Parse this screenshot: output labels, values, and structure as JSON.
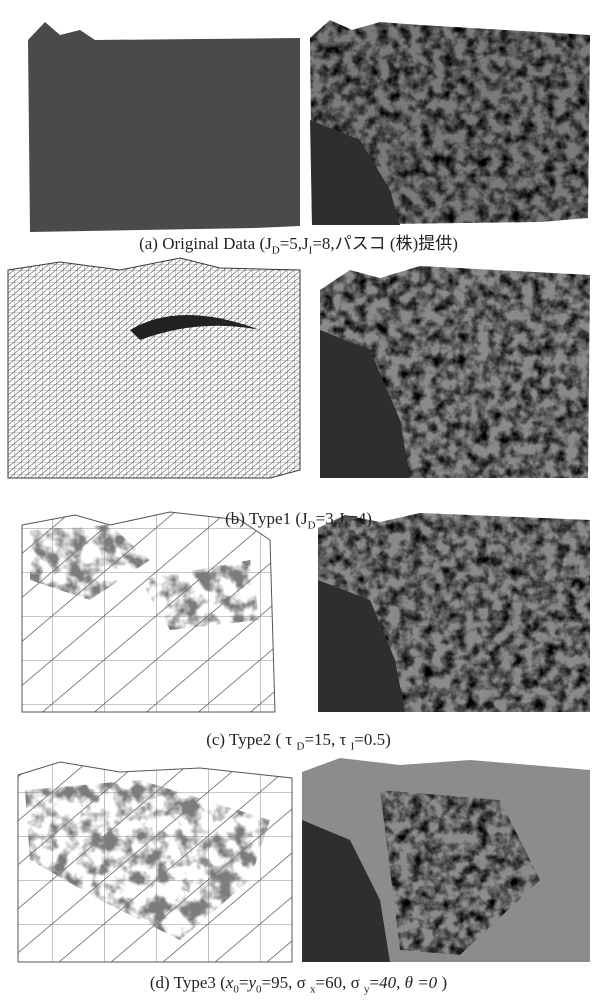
{
  "figure": {
    "panels": [
      {
        "caption": [
          "(a) Original Data (J",
          {
            "sub": "D"
          },
          "=5,J",
          {
            "sub": "I"
          },
          "=8,パスコ (株)提供)"
        ]
      },
      {
        "caption": [
          "(b) Type1 (J",
          {
            "sub": "D"
          },
          "=3,J",
          {
            "sub": "I"
          },
          "=4)"
        ]
      },
      {
        "caption": [
          "(c) Type2 ( τ ",
          {
            "sub": "D"
          },
          "=15, τ ",
          {
            "sub": "I"
          },
          "=0.5)"
        ]
      },
      {
        "caption": [
          "(d) Type3 (",
          {
            "italic": "x"
          },
          {
            "sub": "0"
          },
          "=",
          {
            "italic": "y"
          },
          {
            "sub": "0"
          },
          "=95,  σ ",
          {
            "sub": "x"
          },
          "=60, σ ",
          {
            "sub": "y"
          },
          "=",
          {
            "italic": "40, θ =0"
          },
          " )"
        ]
      }
    ]
  }
}
